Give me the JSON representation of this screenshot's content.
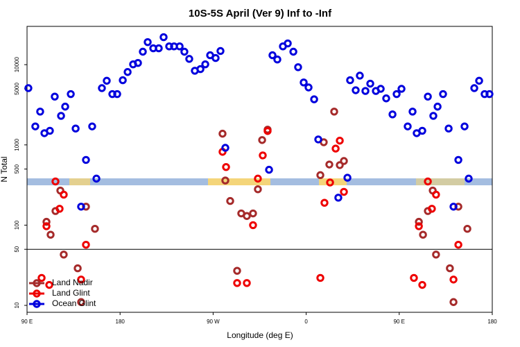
{
  "chart_data": {
    "type": "scatter",
    "title": "10S-5S April (Ver 9)   Inf to -Inf",
    "x_label": "Longitude (deg E)",
    "y_label": "N Total",
    "xlim": [
      90,
      540
    ],
    "ylim": [
      8.2,
      30000
    ],
    "log_y": true,
    "hline": 50,
    "legend": "lower left",
    "xticks": [
      {
        "value": 90,
        "label": "90 E"
      },
      {
        "value": 180,
        "label": "180"
      },
      {
        "value": 270,
        "label": "90 W"
      },
      {
        "value": 360,
        "label": "0"
      },
      {
        "value": 450,
        "label": "90 E"
      },
      {
        "value": 540,
        "label": "180"
      }
    ],
    "yticks": [
      10,
      50,
      100,
      500,
      1000,
      5000,
      10000
    ],
    "series": [
      {
        "name": "Land Nadir",
        "color": "#a52a2a",
        "x": [
          122.2,
          117.5,
          108.8,
          112.8,
          125.5,
          139,
          142.3,
          147,
          155.7,
          279.1,
          281.8,
          286.5,
          293.2,
          297.2,
          302.6,
          308.6,
          313.3,
          317.4,
          322.7,
          373.7,
          377,
          382.4,
          387.1,
          392.5,
          396.5,
          482.4,
          477.7,
          469,
          473,
          485.6,
          499,
          502.5,
          507.2,
          515.9
        ],
        "values": [
          270,
          150,
          110,
          76,
          43,
          29,
          11,
          170,
          90,
          1380,
          360,
          200,
          27,
          140,
          130,
          140,
          280,
          1150,
          1550,
          420,
          1080,
          570,
          2600,
          560,
          630,
          270,
          150,
          110,
          76,
          43,
          29,
          11,
          170,
          90
        ]
      },
      {
        "name": "Land Glint",
        "color": "#ee0000",
        "x": [
          117.5,
          121.5,
          125.5,
          108.8,
          104.1,
          111.5,
          142.3,
          147,
          279.1,
          282.5,
          293.2,
          302.6,
          308.6,
          313.3,
          318,
          322.7,
          373.7,
          377.7,
          383.1,
          388.5,
          392.5,
          396.5,
          477.7,
          481.6,
          485.6,
          469,
          464.2,
          472.3,
          502.5,
          507.2
        ],
        "values": [
          350,
          160,
          240,
          97,
          22,
          18,
          21,
          57,
          820,
          530,
          19,
          19,
          100,
          380,
          740,
          1490,
          22,
          190,
          340,
          900,
          1130,
          260,
          350,
          160,
          240,
          97,
          22,
          18,
          21,
          57
        ]
      },
      {
        "name": "Ocean Glint",
        "color": "#0000dd",
        "x": [
          91.3,
          98,
          102.7,
          106.8,
          112.1,
          116.8,
          122.9,
          126.9,
          132.3,
          137,
          142.3,
          147,
          153,
          157.1,
          162.4,
          167.1,
          172.5,
          177.2,
          182.6,
          187.3,
          192.6,
          197.3,
          202,
          206.7,
          212.1,
          217.4,
          222.1,
          227.5,
          232.2,
          237.6,
          242.2,
          246.9,
          252.3,
          257.7,
          262.4,
          267.1,
          272.4,
          277.1,
          281.8,
          324.1,
          327.4,
          332.1,
          337.5,
          342.2,
          347.6,
          352.2,
          357.6,
          362.3,
          367.7,
          371.7,
          391.1,
          399.9,
          402.5,
          407.9,
          411.9,
          417.3,
          422,
          427.4,
          432.1,
          437.4,
          443.5,
          447.5,
          452.2,
          458.2,
          462.9,
          466.9,
          472.3,
          477.7,
          483,
          487.1,
          492.4,
          497.8,
          502.5,
          507.2,
          513.2,
          517.2,
          522.6,
          527.3,
          532.6,
          537.3
        ],
        "values": [
          5100,
          1700,
          2600,
          1400,
          1500,
          4000,
          2300,
          3000,
          4300,
          1600,
          170,
          650,
          1700,
          380,
          5100,
          6300,
          4300,
          4300,
          6400,
          8100,
          10100,
          10500,
          14500,
          19100,
          16000,
          16000,
          22000,
          16900,
          16900,
          16900,
          14500,
          11800,
          8400,
          8800,
          10100,
          13100,
          12100,
          14800,
          920,
          490,
          13100,
          11600,
          16900,
          18400,
          14500,
          9300,
          6000,
          5200,
          3700,
          1170,
          220,
          390,
          6400,
          4800,
          7300,
          4700,
          5800,
          4700,
          5000,
          3800,
          2400,
          4300,
          5000,
          1700,
          2600,
          1400,
          1500,
          4000,
          2300,
          3000,
          4300,
          1600,
          170,
          650,
          1700,
          380,
          5100,
          6300,
          4300,
          4300
        ]
      }
    ]
  }
}
